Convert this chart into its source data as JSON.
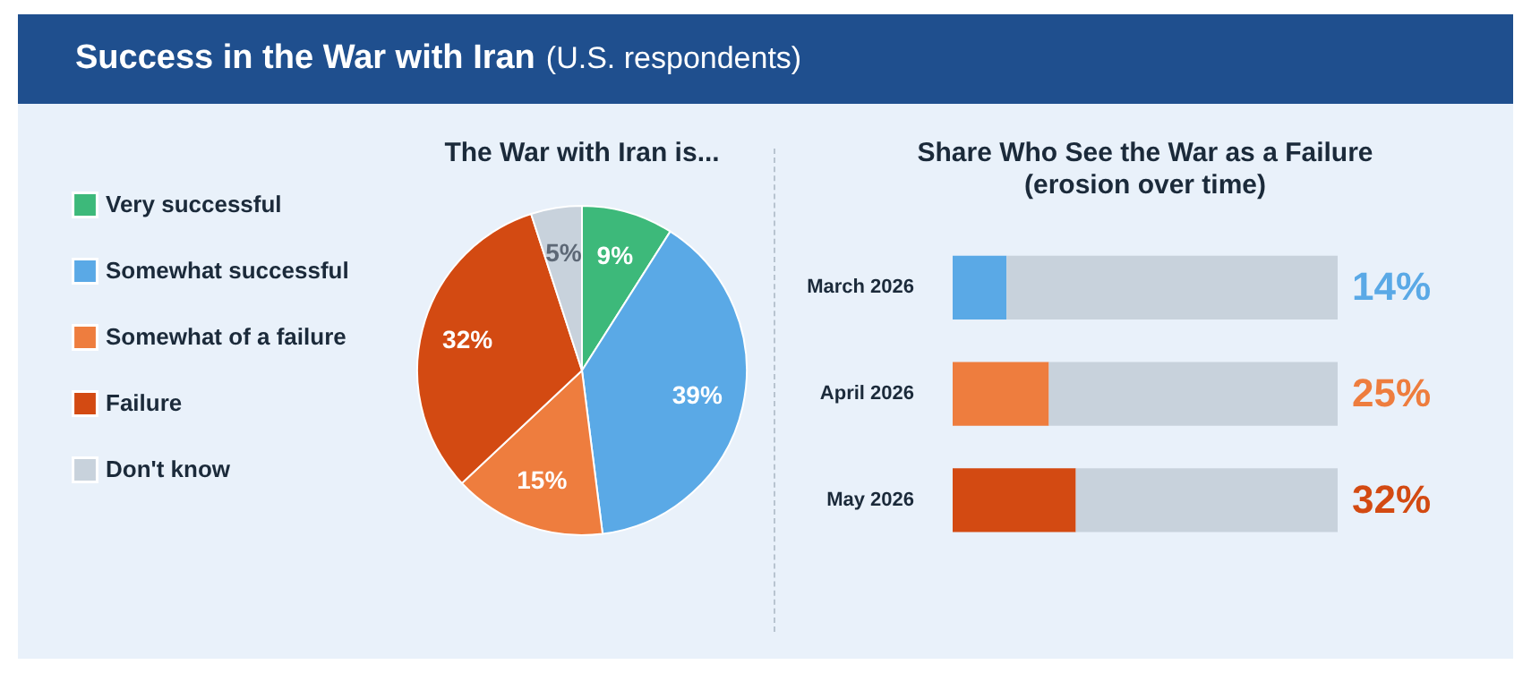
{
  "chart_data": [
    {
      "type": "other",
      "title": "Success in the War with Iran",
      "subtitle": "(U.S. respondents)"
    },
    {
      "type": "pie",
      "title": "The War with Iran is...",
      "categories": [
        "Very successful",
        "Somewhat successful",
        "Somewhat of a failure",
        "Failure",
        "Don't know"
      ],
      "values": [
        9,
        39,
        15,
        32,
        5
      ],
      "colors": [
        "#3db97a",
        "#5aa9e6",
        "#ee7d3e",
        "#d34a12",
        "#c8d2dc"
      ],
      "value_labels": [
        "9%",
        "39%",
        "15%",
        "32%",
        "5%"
      ],
      "legend": "left"
    },
    {
      "type": "bar",
      "title": "Share Who See the War as a Failure",
      "subtitle": "(erosion over time)",
      "orientation": "horizontal",
      "stacked": true,
      "categories": [
        "March 2026",
        "April 2026",
        "May 2026"
      ],
      "xlim": [
        0,
        100
      ],
      "tick_labels": "y",
      "series": [
        {
          "values": [
            14,
            25,
            32
          ],
          "colors": [
            "#5aa9e6",
            "#ee7d3e",
            "#d34a12"
          ],
          "value_labels": [
            "14%",
            "25%",
            "32%"
          ]
        },
        {
          "color": "#c8d2dc",
          "values": [
            86,
            75,
            68
          ]
        }
      ]
    }
  ]
}
